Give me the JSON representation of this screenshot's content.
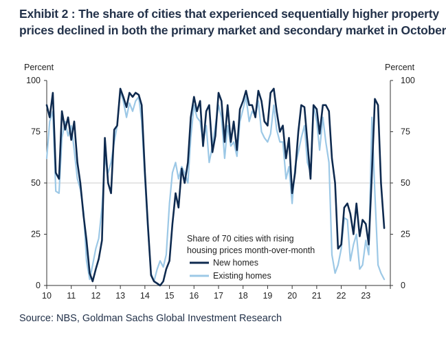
{
  "title_lines": [
    "Exhibit 2 : The share of cities that experienced sequentially higher property",
    "prices declined in both the primary market and secondary market in October"
  ],
  "source": "Source: NBS, Goldman Sachs Global Investment Research",
  "colors": {
    "new_homes": "#0e2a4f",
    "existing_homes": "#9cc8e6",
    "title": "#23324a",
    "axis": "#333333",
    "midline": "#cccccc"
  },
  "chart_data": {
    "type": "line",
    "y_unit_left": "Percent",
    "y_unit_right": "Percent",
    "ylim": [
      0,
      100
    ],
    "yticks": [
      0,
      25,
      50,
      75,
      100
    ],
    "xlim": [
      2010,
      2024
    ],
    "xticks": [
      2010,
      2011,
      2012,
      2013,
      2014,
      2015,
      2016,
      2017,
      2018,
      2019,
      2020,
      2021,
      2022,
      2023
    ],
    "xtick_labels": [
      "10",
      "11",
      "12",
      "13",
      "14",
      "15",
      "16",
      "17",
      "18",
      "19",
      "20",
      "21",
      "22",
      "23"
    ],
    "reference_line": 50,
    "legend_title_lines": [
      "Share of 70 cities with rising",
      "housing prices month-over-month"
    ],
    "series": [
      {
        "name": "New homes",
        "x": [
          2010.0,
          2010.12,
          2010.25,
          2010.37,
          2010.5,
          2010.62,
          2010.75,
          2010.87,
          2011.0,
          2011.12,
          2011.25,
          2011.37,
          2011.5,
          2011.62,
          2011.75,
          2011.87,
          2012.0,
          2012.12,
          2012.25,
          2012.37,
          2012.5,
          2012.62,
          2012.75,
          2012.87,
          2013.0,
          2013.12,
          2013.25,
          2013.37,
          2013.5,
          2013.62,
          2013.75,
          2013.87,
          2014.0,
          2014.12,
          2014.25,
          2014.37,
          2014.5,
          2014.62,
          2014.75,
          2014.87,
          2015.0,
          2015.12,
          2015.25,
          2015.37,
          2015.5,
          2015.62,
          2015.75,
          2015.87,
          2016.0,
          2016.12,
          2016.25,
          2016.37,
          2016.5,
          2016.62,
          2016.75,
          2016.87,
          2017.0,
          2017.12,
          2017.25,
          2017.37,
          2017.5,
          2017.62,
          2017.75,
          2017.87,
          2018.0,
          2018.12,
          2018.25,
          2018.37,
          2018.5,
          2018.62,
          2018.75,
          2018.87,
          2019.0,
          2019.12,
          2019.25,
          2019.37,
          2019.5,
          2019.62,
          2019.75,
          2019.87,
          2020.0,
          2020.12,
          2020.25,
          2020.37,
          2020.5,
          2020.62,
          2020.75,
          2020.87,
          2021.0,
          2021.12,
          2021.25,
          2021.37,
          2021.5,
          2021.62,
          2021.75,
          2021.87,
          2022.0,
          2022.12,
          2022.25,
          2022.37,
          2022.5,
          2022.62,
          2022.75,
          2022.87,
          2023.0,
          2023.12,
          2023.25,
          2023.37,
          2023.5,
          2023.62,
          2023.75
        ],
        "values": [
          88,
          82,
          94,
          55,
          52,
          85,
          76,
          82,
          71,
          80,
          60,
          50,
          34,
          22,
          6,
          2,
          8,
          13,
          22,
          72,
          50,
          45,
          76,
          78,
          96,
          92,
          87,
          94,
          92,
          94,
          93,
          88,
          55,
          30,
          5,
          2,
          1,
          0,
          2,
          8,
          12,
          30,
          45,
          38,
          57,
          50,
          60,
          82,
          92,
          85,
          90,
          68,
          85,
          88,
          65,
          73,
          94,
          90,
          70,
          88,
          70,
          80,
          66,
          86,
          90,
          95,
          88,
          88,
          82,
          95,
          90,
          80,
          78,
          94,
          96,
          85,
          75,
          78,
          62,
          72,
          45,
          55,
          75,
          88,
          87,
          70,
          52,
          88,
          86,
          74,
          88,
          88,
          85,
          62,
          50,
          18,
          20,
          38,
          40,
          35,
          25,
          40,
          24,
          32,
          30,
          20,
          55,
          91,
          88,
          50,
          28
        ]
      },
      {
        "name": "Existing homes",
        "x": [
          2010.0,
          2010.12,
          2010.25,
          2010.37,
          2010.5,
          2010.62,
          2010.75,
          2010.87,
          2011.0,
          2011.12,
          2011.25,
          2011.37,
          2011.5,
          2011.62,
          2011.75,
          2011.87,
          2012.0,
          2012.12,
          2012.25,
          2012.37,
          2012.5,
          2012.62,
          2012.75,
          2012.87,
          2013.0,
          2013.12,
          2013.25,
          2013.37,
          2013.5,
          2013.62,
          2013.75,
          2013.87,
          2014.0,
          2014.12,
          2014.25,
          2014.37,
          2014.5,
          2014.62,
          2014.75,
          2014.87,
          2015.0,
          2015.12,
          2015.25,
          2015.37,
          2015.5,
          2015.62,
          2015.75,
          2015.87,
          2016.0,
          2016.12,
          2016.25,
          2016.37,
          2016.5,
          2016.62,
          2016.75,
          2016.87,
          2017.0,
          2017.12,
          2017.25,
          2017.37,
          2017.5,
          2017.62,
          2017.75,
          2017.87,
          2018.0,
          2018.12,
          2018.25,
          2018.37,
          2018.5,
          2018.62,
          2018.75,
          2018.87,
          2019.0,
          2019.12,
          2019.25,
          2019.37,
          2019.5,
          2019.62,
          2019.75,
          2019.87,
          2020.0,
          2020.12,
          2020.25,
          2020.37,
          2020.5,
          2020.62,
          2020.75,
          2020.87,
          2021.0,
          2021.12,
          2021.25,
          2021.37,
          2021.5,
          2021.62,
          2021.75,
          2021.87,
          2022.0,
          2022.12,
          2022.25,
          2022.37,
          2022.5,
          2022.62,
          2022.75,
          2022.87,
          2023.0,
          2023.12,
          2023.25,
          2023.37,
          2023.5,
          2023.62,
          2023.75
        ],
        "values": [
          62,
          80,
          85,
          46,
          45,
          72,
          80,
          73,
          78,
          66,
          52,
          47,
          36,
          12,
          3,
          10,
          18,
          23,
          38,
          62,
          55,
          60,
          70,
          78,
          95,
          90,
          82,
          89,
          85,
          90,
          92,
          80,
          52,
          28,
          6,
          2,
          8,
          12,
          9,
          15,
          40,
          55,
          60,
          52,
          58,
          55,
          50,
          72,
          88,
          82,
          80,
          70,
          78,
          60,
          68,
          78,
          88,
          82,
          62,
          78,
          68,
          70,
          63,
          80,
          86,
          92,
          80,
          85,
          83,
          90,
          75,
          72,
          70,
          74,
          88,
          76,
          70,
          70,
          52,
          58,
          40,
          58,
          65,
          72,
          78,
          60,
          55,
          88,
          80,
          66,
          82,
          70,
          60,
          15,
          6,
          10,
          18,
          33,
          32,
          12,
          20,
          25,
          8,
          10,
          22,
          15,
          82,
          45,
          10,
          6,
          3
        ]
      }
    ]
  }
}
